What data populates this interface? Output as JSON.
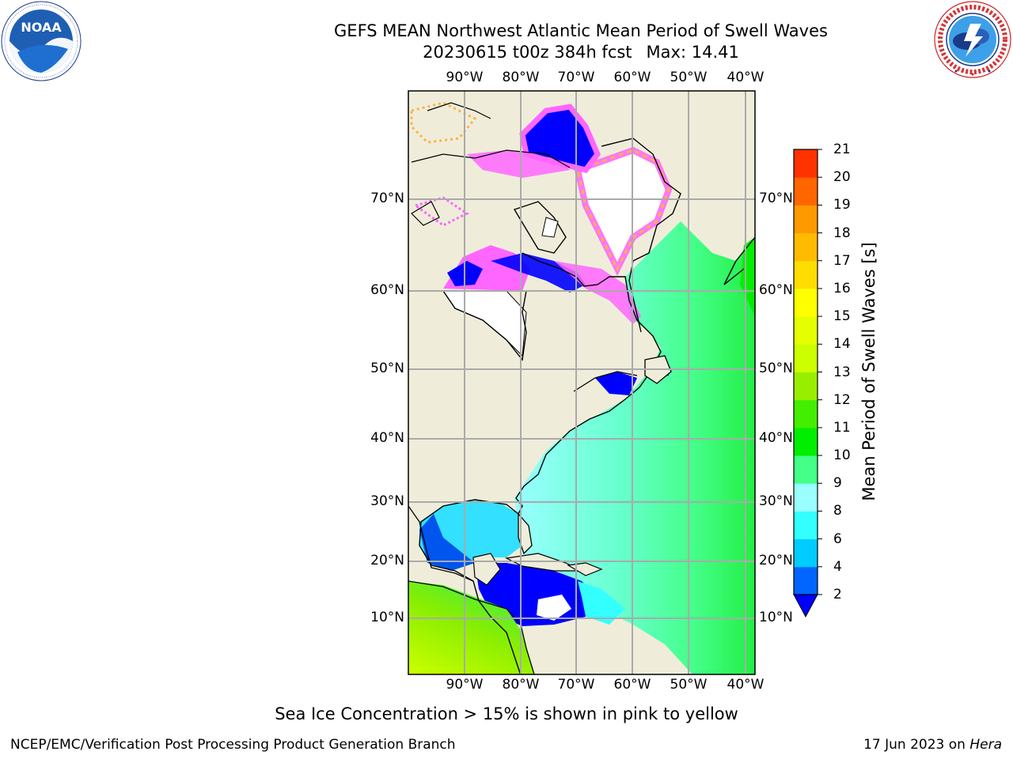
{
  "title": {
    "line1": "GEFS MEAN Northwest Atlantic Mean Period of Swell Waves",
    "date_run": "20230615 t00z 384h fcst",
    "max_label": "Max: 14.41"
  },
  "logos": {
    "left": {
      "name": "noaa-logo",
      "text": "NOAA",
      "ring_text": "NATIONAL OCEANIC AND ATMOSPHERIC ADMINISTRATION · U.S. DEPARTMENT OF COMMERCE"
    },
    "right": {
      "name": "nws-logo",
      "ring_text": "NATIONAL WEATHER SERVICE"
    }
  },
  "map": {
    "lon_labels": [
      "90°W",
      "80°W",
      "70°W",
      "60°W",
      "50°W",
      "40°W"
    ],
    "lat_labels": [
      "10°N",
      "20°N",
      "30°N",
      "40°N",
      "50°N",
      "60°N",
      "70°N"
    ],
    "colors": {
      "land": "#efedda",
      "ice": "#ffffff",
      "ice_pink": "#ff66ff",
      "ice_orange": "#ffb04a",
      "grid": "#aaaaaa"
    }
  },
  "colorbar": {
    "label": "Mean Period of Swell Waves [s]",
    "ticks": [
      "2",
      "4",
      "6",
      "8",
      "9",
      "10",
      "11",
      "12",
      "13",
      "14",
      "15",
      "16",
      "17",
      "18",
      "19",
      "20",
      "21"
    ],
    "colors": [
      "#0066ff",
      "#00ccff",
      "#33ffff",
      "#99ffff",
      "#44ff88",
      "#00ee00",
      "#44ee00",
      "#99ee00",
      "#ccff00",
      "#e6ff00",
      "#ffff00",
      "#ffdd00",
      "#ffbb00",
      "#ff9900",
      "#ff6600",
      "#ff3300"
    ],
    "under_color": "#0000ff"
  },
  "footer": {
    "note": "Sea Ice Concentration > 15% is shown in pink to yellow",
    "left": "NCEP/EMC/Verification Post Processing Product Generation Branch",
    "right_date": "17 Jun 2023 on",
    "right_host": "Hera"
  }
}
